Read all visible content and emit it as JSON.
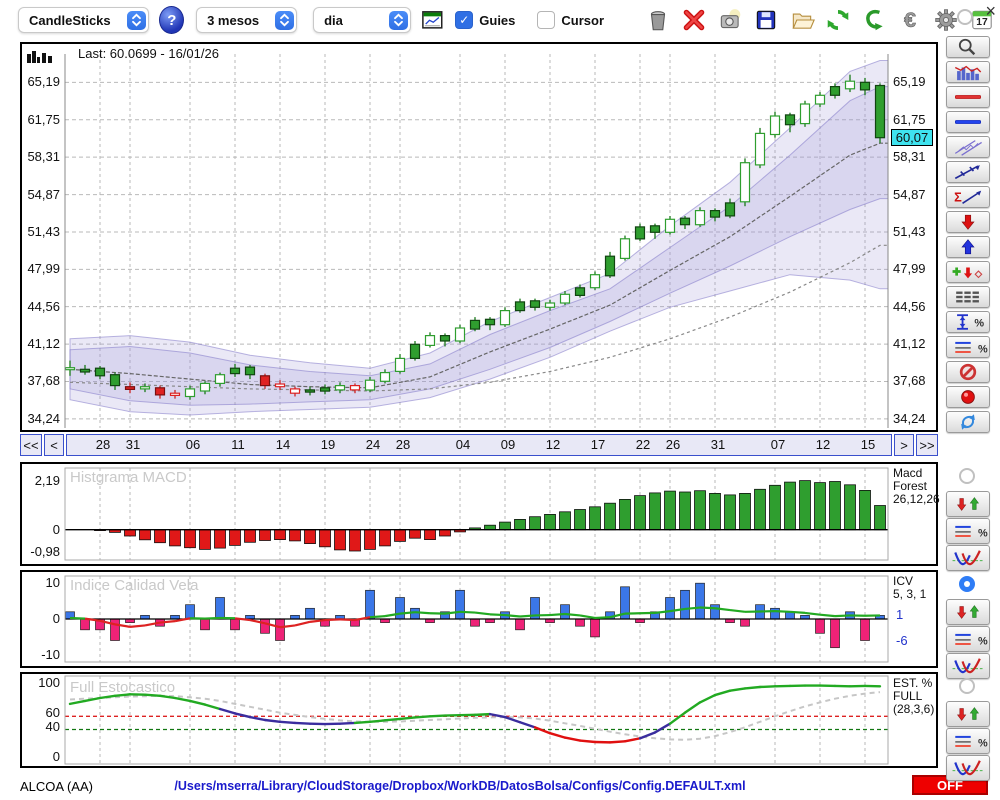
{
  "toolbar": {
    "chart_type_value": "CandleSticks",
    "period_value": "3 mesos",
    "interval_value": "dia",
    "help_label": "?",
    "guies_label": "Guies",
    "cursor_label": "Cursor",
    "check_glyph": "✓",
    "calendar_day": "17",
    "buttons": [
      "trash",
      "delete",
      "snapshot",
      "save",
      "open",
      "refresh",
      "revert",
      "euro",
      "gear",
      "calendar"
    ],
    "close_glyph": "×"
  },
  "main_chart": {
    "last_label": "Last: 60.0699 - 16/01/26",
    "y_values": [
      65.19,
      61.75,
      58.31,
      54.87,
      51.43,
      47.99,
      44.56,
      41.12,
      37.68,
      34.24
    ],
    "y_labels": [
      "65,19",
      "61,75",
      "58,31",
      "54,87",
      "51,43",
      "47,99",
      "44,56",
      "41,12",
      "37,68",
      "34,24"
    ],
    "price_badge": "60,07",
    "badge_value": 60.07,
    "nav": {
      "first": "<<",
      "prev": "<",
      "next": ">",
      "last": ">>"
    }
  },
  "macd_panel": {
    "title": "Histgrama MACD",
    "y_values": [
      2.19,
      0,
      -0.98
    ],
    "y_labels": [
      "2,19",
      "0",
      "-0,98"
    ],
    "right_lines": [
      "Macd",
      "Forest",
      "26,12,26"
    ]
  },
  "icv_panel": {
    "title": "Indice Calidad Vela",
    "y_values": [
      10,
      0,
      -10
    ],
    "y_labels": [
      "10",
      "0",
      "-10"
    ],
    "right_lines": [
      "ICV",
      "5, 3, 1"
    ],
    "value_pos": "1",
    "value_pos_v": 1,
    "value_neg": "-6",
    "value_neg_v": -6
  },
  "stoch_panel": {
    "title": "Full Estocastico",
    "y_values": [
      100,
      60,
      40,
      0
    ],
    "y_labels": [
      "100",
      "60",
      "40",
      "0"
    ],
    "right_lines": [
      "EST. %",
      "FULL",
      "(28,3,6)"
    ]
  },
  "status_bar": {
    "symbol": "ALCOA (AA)",
    "config_path": "/Users/mserra/Library/CloudStorage/Dropbox/WorkDB/DatosBolsa/Configs/Config.DEFAULT.xml",
    "off_label": "OFF"
  },
  "sidebar": {
    "tools": [
      "zoom",
      "indicator",
      "red-hline",
      "blue-hline",
      "channel",
      "trendline",
      "sum-trendline",
      "arrow-down",
      "arrow-up",
      "markers",
      "levels",
      "range-percent",
      "lines-percent",
      "forbid",
      "record",
      "swap"
    ],
    "panel_tools": [
      "arrows-updown",
      "lines-percent",
      "curves"
    ],
    "panel_radios": {
      "macd": false,
      "icv": true,
      "stoch": false
    }
  },
  "colors": {
    "accent_blue": "#2f6fe4",
    "badge_cyan": "#3fe3ef",
    "candle_green": "#2f9e2f",
    "candle_red": "#e02222",
    "bar_blue": "#3b77e8",
    "bar_pink": "#ee2277",
    "off_red": "#ee0000",
    "band_lavender": "rgba(160,148,216,0.22)"
  },
  "chart_data": {
    "type": "multi-panel",
    "x_tick_labels": [
      "28",
      "31",
      "06",
      "11",
      "14",
      "19",
      "24",
      "28",
      "04",
      "09",
      "12",
      "17",
      "22",
      "26",
      "31",
      "07",
      "12",
      "15"
    ],
    "x_tick_indices": [
      2,
      4,
      8,
      11,
      14,
      17,
      20,
      22,
      26,
      29,
      32,
      35,
      38,
      40,
      43,
      47,
      50,
      53
    ],
    "panels": [
      {
        "id": "price",
        "type": "candlestick",
        "ylim": [
          33.4,
          67.8
        ],
        "last_close": 60.0699,
        "last_date": "16/01/26",
        "candles": [
          [
            38.8,
            39.6,
            38.2,
            38.95,
            "w"
          ],
          [
            38.8,
            39.2,
            38.3,
            38.55,
            "g"
          ],
          [
            38.9,
            39.1,
            37.9,
            38.2,
            "g"
          ],
          [
            38.3,
            38.5,
            36.9,
            37.3,
            "g"
          ],
          [
            37.2,
            37.6,
            36.6,
            36.95,
            "r"
          ],
          [
            37.0,
            37.5,
            36.7,
            37.2,
            "w"
          ],
          [
            37.1,
            37.3,
            36.1,
            36.45,
            "r"
          ],
          [
            36.4,
            36.9,
            36.1,
            36.6,
            "rh"
          ],
          [
            36.3,
            37.3,
            36.0,
            37.0,
            "w"
          ],
          [
            36.8,
            37.7,
            36.5,
            37.5,
            "w"
          ],
          [
            37.5,
            38.5,
            37.2,
            38.3,
            "w"
          ],
          [
            38.4,
            39.3,
            38.1,
            38.9,
            "g"
          ],
          [
            39.0,
            39.2,
            37.9,
            38.3,
            "g"
          ],
          [
            38.2,
            38.4,
            37.0,
            37.3,
            "r"
          ],
          [
            37.2,
            37.8,
            36.9,
            37.45,
            "rh"
          ],
          [
            37.0,
            37.2,
            36.3,
            36.6,
            "rh"
          ],
          [
            36.7,
            37.2,
            36.4,
            36.9,
            "g"
          ],
          [
            36.8,
            37.4,
            36.5,
            37.1,
            "g"
          ],
          [
            36.9,
            37.6,
            36.6,
            37.3,
            "w"
          ],
          [
            37.3,
            37.5,
            36.6,
            36.9,
            "rh"
          ],
          [
            36.9,
            38.1,
            36.7,
            37.8,
            "w"
          ],
          [
            37.7,
            38.8,
            37.5,
            38.5,
            "w"
          ],
          [
            38.6,
            40.2,
            38.4,
            39.8,
            "w"
          ],
          [
            39.8,
            41.4,
            39.6,
            41.1,
            "g"
          ],
          [
            41.0,
            42.2,
            40.8,
            41.9,
            "w"
          ],
          [
            41.9,
            42.1,
            40.9,
            41.4,
            "g"
          ],
          [
            41.4,
            42.9,
            41.2,
            42.6,
            "w"
          ],
          [
            42.5,
            43.6,
            42.3,
            43.3,
            "g"
          ],
          [
            43.4,
            43.6,
            42.4,
            42.9,
            "g"
          ],
          [
            42.9,
            44.5,
            42.7,
            44.2,
            "w"
          ],
          [
            44.2,
            45.3,
            44.0,
            45.0,
            "g"
          ],
          [
            45.1,
            45.3,
            44.2,
            44.5,
            "g"
          ],
          [
            44.5,
            45.2,
            44.2,
            44.9,
            "w"
          ],
          [
            44.9,
            46.0,
            44.7,
            45.7,
            "w"
          ],
          [
            45.6,
            46.6,
            45.4,
            46.3,
            "g"
          ],
          [
            46.3,
            47.8,
            46.1,
            47.5,
            "w"
          ],
          [
            47.4,
            49.6,
            47.2,
            49.2,
            "g"
          ],
          [
            49.0,
            51.1,
            48.8,
            50.8,
            "w"
          ],
          [
            50.8,
            52.2,
            50.6,
            51.9,
            "g"
          ],
          [
            52.0,
            52.2,
            50.8,
            51.4,
            "g"
          ],
          [
            51.4,
            52.9,
            51.2,
            52.6,
            "w"
          ],
          [
            52.7,
            52.9,
            51.7,
            52.1,
            "g"
          ],
          [
            52.1,
            53.7,
            51.9,
            53.4,
            "w"
          ],
          [
            53.4,
            53.6,
            52.4,
            52.8,
            "g"
          ],
          [
            52.9,
            54.5,
            52.7,
            54.1,
            "g"
          ],
          [
            54.2,
            58.2,
            53.8,
            57.8,
            "w"
          ],
          [
            57.6,
            61.0,
            57.3,
            60.5,
            "w"
          ],
          [
            60.4,
            62.5,
            60.1,
            62.1,
            "w"
          ],
          [
            62.2,
            62.4,
            60.6,
            61.3,
            "g"
          ],
          [
            61.4,
            63.5,
            61.1,
            63.2,
            "w"
          ],
          [
            63.2,
            64.3,
            62.9,
            64.0,
            "w"
          ],
          [
            64.0,
            65.1,
            63.7,
            64.8,
            "g"
          ],
          [
            64.6,
            65.9,
            64.3,
            65.3,
            "w"
          ],
          [
            65.2,
            65.6,
            64.0,
            64.5,
            "g"
          ],
          [
            64.9,
            65.1,
            59.6,
            60.1,
            "g"
          ]
        ],
        "band_sample_indices": [
          0,
          4,
          8,
          12,
          16,
          20,
          24,
          28,
          32,
          36,
          40,
          44,
          48,
          52,
          54
        ],
        "bollinger_outer": {
          "upper": [
            41.6,
            41.9,
            41.3,
            40.1,
            39.4,
            38.9,
            40.3,
            43.2,
            45.4,
            47.6,
            52.0,
            56.0,
            61.0,
            66.2,
            67.2
          ],
          "lower": [
            36.0,
            34.9,
            34.6,
            34.9,
            35.1,
            35.3,
            36.2,
            37.9,
            39.9,
            42.3,
            44.5,
            46.0,
            47.5,
            47.0,
            46.2
          ]
        },
        "bollinger_inner": {
          "upper": [
            40.6,
            40.9,
            40.3,
            39.2,
            38.6,
            38.2,
            39.3,
            42.0,
            44.2,
            46.2,
            50.0,
            53.8,
            58.5,
            63.5,
            64.8
          ],
          "lower": [
            37.0,
            35.9,
            35.5,
            35.6,
            35.8,
            36.0,
            37.0,
            38.8,
            40.8,
            43.2,
            45.8,
            48.3,
            51.0,
            53.5,
            54.5
          ]
        },
        "ma_fast": [
          38.8,
          38.4,
          37.9,
          37.4,
          37.2,
          37.1,
          38.1,
          40.4,
          42.5,
          44.7,
          47.9,
          51.0,
          54.7,
          58.5,
          59.6
        ],
        "ma_slow": [
          37.6,
          37.4,
          37.2,
          37.0,
          36.9,
          36.8,
          37.0,
          37.6,
          38.6,
          39.9,
          41.6,
          43.6,
          45.9,
          48.6,
          50.2
        ]
      },
      {
        "id": "macd",
        "type": "bar",
        "ylim": [
          -1.35,
          2.75
        ],
        "values": [
          0.02,
          0.0,
          -0.04,
          -0.12,
          -0.28,
          -0.45,
          -0.58,
          -0.72,
          -0.8,
          -0.88,
          -0.82,
          -0.7,
          -0.56,
          -0.48,
          -0.44,
          -0.5,
          -0.62,
          -0.76,
          -0.9,
          -0.95,
          -0.88,
          -0.72,
          -0.52,
          -0.38,
          -0.44,
          -0.28,
          -0.1,
          0.08,
          0.2,
          0.34,
          0.46,
          0.58,
          0.68,
          0.8,
          0.9,
          1.02,
          1.18,
          1.35,
          1.52,
          1.64,
          1.72,
          1.68,
          1.74,
          1.62,
          1.55,
          1.62,
          1.8,
          1.98,
          2.12,
          2.19,
          2.1,
          2.15,
          2.0,
          1.75,
          1.08
        ]
      },
      {
        "id": "icv",
        "type": "bar",
        "ylim": [
          -12,
          12
        ],
        "values": [
          2,
          -3,
          -3,
          -6,
          -1,
          1,
          -2,
          1,
          4,
          -3,
          6,
          -3,
          1,
          -4,
          -6,
          1,
          3,
          -2,
          1,
          -2,
          8,
          -1,
          6,
          3,
          -1,
          2,
          8,
          -2,
          -1,
          2,
          -3,
          6,
          -1,
          4,
          -2,
          -5,
          2,
          9,
          -1,
          2,
          6,
          8,
          10,
          4,
          -1,
          -2,
          4,
          3,
          2,
          1,
          -4,
          -8,
          2,
          -6,
          1
        ],
        "line": [
          0.3,
          0.1,
          -0.5,
          -1.5,
          -2.2,
          -1.8,
          -1.0,
          -0.6,
          0.2,
          0.1,
          0.3,
          0.2,
          -0.3,
          -1.2,
          -2.3,
          -1.8,
          -0.8,
          -0.3,
          -0.1,
          -0.3,
          0.5,
          0.8,
          1.5,
          1.9,
          1.6,
          1.5,
          2.0,
          1.8,
          1.3,
          1.1,
          0.7,
          1.0,
          1.1,
          1.4,
          1.0,
          0.3,
          0.5,
          1.5,
          1.6,
          1.7,
          2.2,
          2.8,
          3.2,
          3.0,
          2.5,
          2.0,
          2.1,
          2.2,
          2.0,
          1.7,
          1.2,
          0.8,
          1.0,
          0.9,
          1.0
        ]
      },
      {
        "id": "stoch",
        "type": "line",
        "ylim": [
          0,
          100
        ],
        "main": [
          72,
          76,
          80,
          83,
          85,
          84.5,
          83,
          80,
          76,
          71,
          65,
          59,
          54,
          50,
          47.5,
          46,
          45,
          44.5,
          45,
          46,
          47.5,
          49.5,
          51.5,
          53.5,
          55,
          56,
          56.5,
          57,
          58,
          54,
          47,
          40,
          32,
          26,
          22,
          20,
          19.5,
          21,
          25,
          33,
          45,
          60,
          74,
          84,
          90,
          93,
          95,
          96,
          96.5,
          97,
          97,
          96.5,
          96,
          96.5,
          96
        ],
        "segment_colors": "gggggggggggpppppppppgggggggggppprrrrrrrppgggggggggggggg",
        "signal": [
          78,
          79,
          80,
          81,
          82,
          82.5,
          83,
          82.5,
          81,
          79,
          76,
          72,
          68,
          64,
          60,
          57,
          54,
          51.5,
          49.5,
          48,
          47.5,
          47.5,
          48,
          49,
          50,
          51,
          52,
          53,
          53.5,
          54,
          53.5,
          52,
          49,
          45.5,
          42,
          38,
          34,
          30.5,
          27.5,
          25,
          23.5,
          23,
          24.5,
          28,
          33.5,
          40,
          47.5,
          55,
          62,
          68.5,
          74,
          79,
          83,
          86,
          88
        ],
        "hlines": [
          {
            "value": 55,
            "color": "#dd2222"
          },
          {
            "value": 37,
            "color": "#117711"
          }
        ]
      }
    ]
  }
}
